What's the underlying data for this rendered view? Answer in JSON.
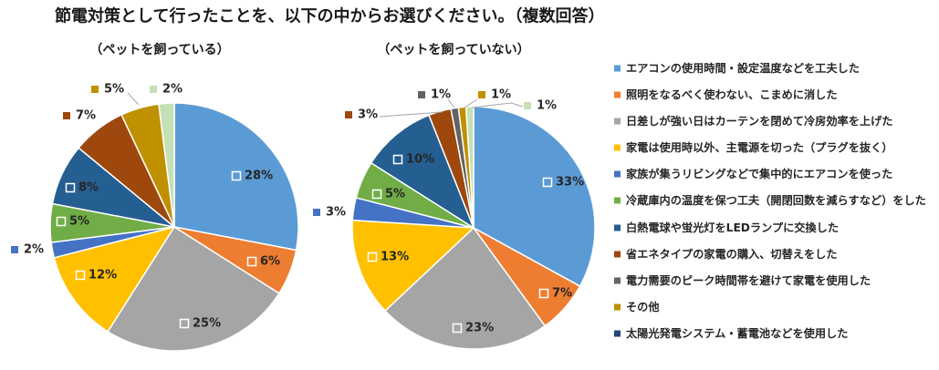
{
  "title": "節電対策として行ったことを、以下の中からお選びください。（複数回答）",
  "legend": [
    {
      "label": "エアコンの使用時間・設定温度などを工夫した",
      "color": "#5B9BD5"
    },
    {
      "label": "照明をなるべく使わない、こまめに消した",
      "color": "#ED7D31"
    },
    {
      "label": "日差しが強い日はカーテンを閉めて冷房効率を上げた",
      "color": "#A5A5A5"
    },
    {
      "label": "家電は使用時以外、主電源を切った（プラグを抜く）",
      "color": "#FFC000"
    },
    {
      "label": "家族が集うリビングなどで集中的にエアコンを使った",
      "color": "#4472C4"
    },
    {
      "label": "冷蔵庫内の温度を保つ工夫（開閉回数を減らすなど）をした",
      "color": "#70AD47"
    },
    {
      "label": "白熱電球や蛍光灯をLEDランプに交換した",
      "color": "#255E91"
    },
    {
      "label": "省エネタイプの家電の購入、切替えをした",
      "color": "#9E480E"
    },
    {
      "label": "電力需要のピーク時間帯を避けて家電を使用した",
      "color": "#636363"
    },
    {
      "label": "その他",
      "color": "#BF9000"
    },
    {
      "label": "太陽光発電システム・蓄電池などを使用した",
      "color": "#264478"
    }
  ],
  "chart_data": [
    {
      "type": "pie",
      "title": "（ペットを飼っている）",
      "legend_position": "right",
      "slices": [
        {
          "value": 28,
          "label": "28%",
          "color": "#5B9BD5"
        },
        {
          "value": 6,
          "label": "6%",
          "color": "#ED7D31"
        },
        {
          "value": 25,
          "label": "25%",
          "color": "#A5A5A5"
        },
        {
          "value": 12,
          "label": "12%",
          "color": "#FFC000"
        },
        {
          "value": 2,
          "label": "2%",
          "color": "#4472C4"
        },
        {
          "value": 5,
          "label": "5%",
          "color": "#70AD47"
        },
        {
          "value": 8,
          "label": "8%",
          "color": "#255E91"
        },
        {
          "value": 7,
          "label": "7%",
          "color": "#9E480E"
        },
        {
          "value": 5,
          "label": "5%",
          "color": "#BF9000"
        },
        {
          "value": 2,
          "label": "2%",
          "color": "#C5E0B4"
        }
      ]
    },
    {
      "type": "pie",
      "title": "（ペットを飼っていない）",
      "legend_position": "right",
      "slices": [
        {
          "value": 33,
          "label": "33%",
          "color": "#5B9BD5"
        },
        {
          "value": 7,
          "label": "7%",
          "color": "#ED7D31"
        },
        {
          "value": 23,
          "label": "23%",
          "color": "#A5A5A5"
        },
        {
          "value": 13,
          "label": "13%",
          "color": "#FFC000"
        },
        {
          "value": 3,
          "label": "3%",
          "color": "#4472C4"
        },
        {
          "value": 5,
          "label": "5%",
          "color": "#70AD47"
        },
        {
          "value": 10,
          "label": "10%",
          "color": "#255E91"
        },
        {
          "value": 3,
          "label": "3%",
          "color": "#9E480E"
        },
        {
          "value": 1,
          "label": "1%",
          "color": "#636363"
        },
        {
          "value": 1,
          "label": "1%",
          "color": "#BF9000"
        },
        {
          "value": 1,
          "label": "1%",
          "color": "#C5E0B4"
        }
      ]
    }
  ]
}
